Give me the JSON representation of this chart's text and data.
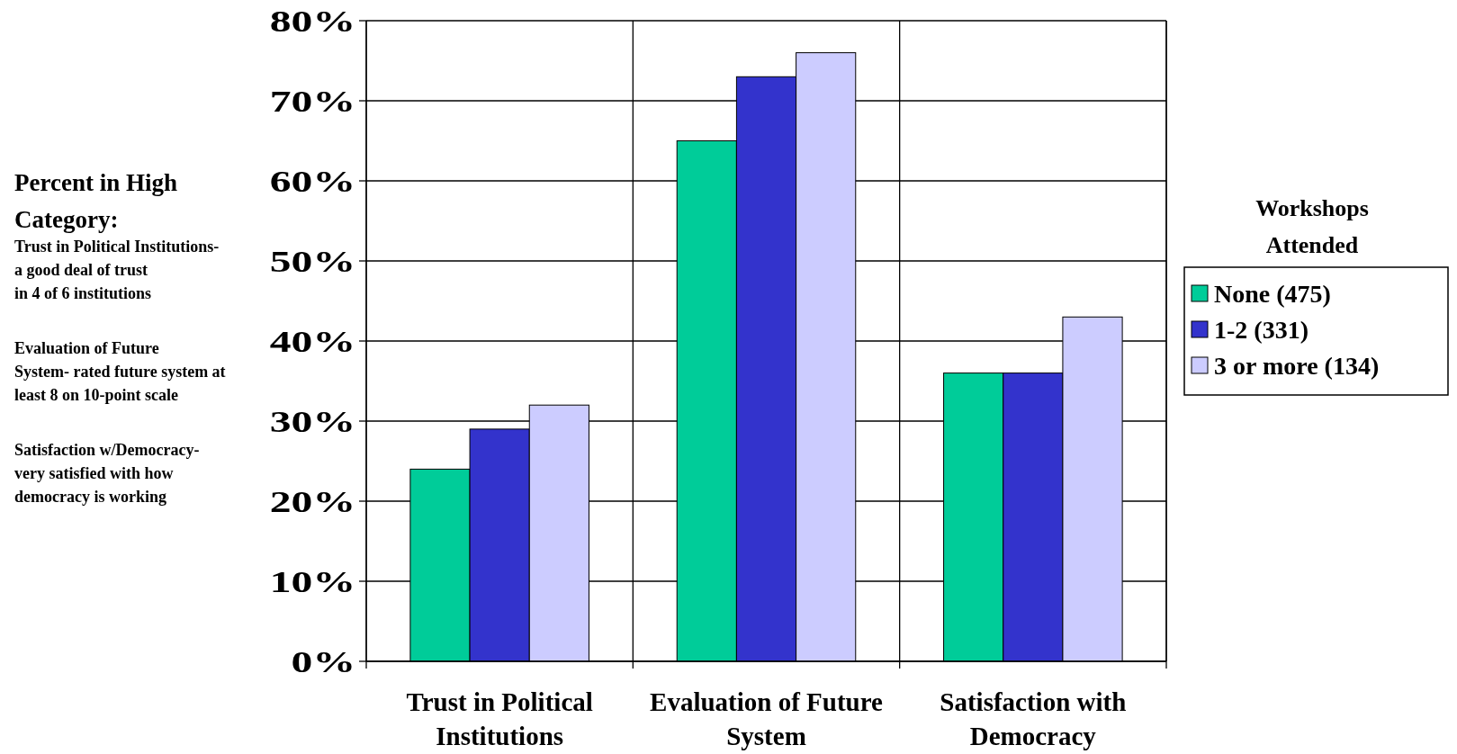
{
  "chart_data": {
    "type": "bar",
    "categories": [
      "Trust in Political Institutions",
      "Evaluation of Future System",
      "Satisfaction with Democracy"
    ],
    "series": [
      {
        "name": "None (475)",
        "color": "#00cc99",
        "values": [
          24,
          65,
          36
        ]
      },
      {
        "name": "1-2 (331)",
        "color": "#3333cc",
        "values": [
          29,
          73,
          36
        ]
      },
      {
        "name": "3 or more (134)",
        "color": "#ccccff",
        "values": [
          32,
          76,
          43
        ]
      }
    ],
    "ylim": [
      0,
      80
    ],
    "yticks": [
      {
        "value": 0,
        "label": "0%"
      },
      {
        "value": 10,
        "label": "10%"
      },
      {
        "value": 20,
        "label": "20%"
      },
      {
        "value": 30,
        "label": "30%"
      },
      {
        "value": 40,
        "label": "40%"
      },
      {
        "value": 50,
        "label": "50%"
      },
      {
        "value": 60,
        "label": "60%"
      },
      {
        "value": 70,
        "label": "70%"
      },
      {
        "value": 80,
        "label": "80%"
      }
    ],
    "grid": true,
    "legend": "right",
    "legend_title": "Workshops Attended",
    "annotations": [
      "Percent in High\nCategory:",
      "Trust in Political Institutions-\na good deal of trust\nin 4 of 6 institutions",
      "Evaluation of Future\nSystem- rated future system at\nleast 8 on 10-point scale",
      "Satisfaction w/Democracy-\nvery satisfied with how\ndemocracy is working"
    ]
  }
}
